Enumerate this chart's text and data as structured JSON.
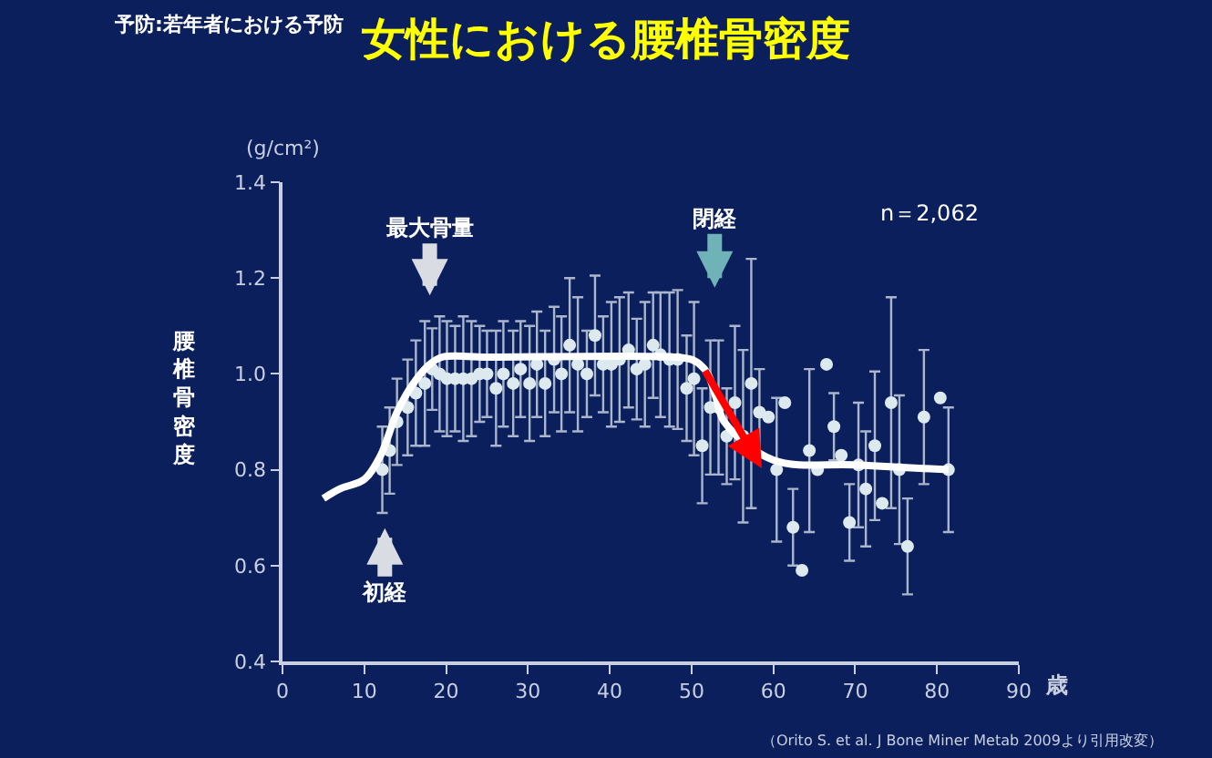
{
  "chart_data": {
    "type": "scatter",
    "title": "女性における腰椎骨密度",
    "subtitle": "予防:若年者における予防",
    "xlabel": "歳",
    "ylabel": "腰椎骨密度",
    "annotations": [
      "(g/cm²)",
      "n＝2,062",
      "（Orito S. et al. J Bone Miner Metab 2009より引用改変）",
      "最大骨量",
      "初経",
      "閉経"
    ],
    "xlim": [
      0,
      90
    ],
    "xticks": [
      0,
      10,
      20,
      30,
      40,
      50,
      60,
      70,
      80,
      90
    ],
    "ylim": [
      0.4,
      1.4
    ],
    "yticks": [
      0.4,
      0.6,
      0.8,
      {
        "value": 1.0,
        "label": "1.0"
      },
      1.2,
      1.4
    ],
    "grid": false,
    "marker": "circle",
    "series": [
      {
        "color": "#dce9ee",
        "x": [
          12.2,
          13.1,
          14.0,
          15.3,
          16.3,
          17.4,
          18.3,
          19.2,
          20.1,
          21.1,
          22.1,
          23.1,
          24.1,
          25.0,
          26.1,
          27.0,
          28.2,
          29.1,
          30.2,
          31.1,
          32.1,
          33.2,
          34.1,
          35.1,
          36.1,
          37.2,
          38.2,
          39.2,
          40.2,
          41.2,
          42.3,
          43.3,
          44.3,
          45.3,
          46.2,
          47.3,
          48.3,
          49.4,
          50.3,
          51.3,
          52.3,
          53.3,
          54.3,
          55.3,
          56.3,
          57.3,
          58.3,
          59.4,
          60.4,
          61.4,
          62.4,
          63.5,
          64.4,
          65.4,
          66.5,
          67.4,
          68.3,
          69.3,
          70.4,
          71.3,
          72.4,
          73.3,
          74.4,
          75.4,
          76.4,
          78.4,
          80.4,
          81.4
        ],
        "values": [
          0.8,
          0.84,
          0.9,
          0.93,
          0.96,
          0.98,
          1.01,
          1.0,
          0.99,
          0.99,
          0.99,
          0.99,
          1.0,
          1.0,
          0.97,
          1.0,
          0.98,
          1.01,
          0.98,
          1.02,
          0.98,
          1.03,
          1.0,
          1.06,
          1.02,
          1.0,
          1.08,
          1.02,
          1.02,
          1.03,
          1.05,
          1.01,
          1.02,
          1.06,
          1.04,
          1.03,
          1.03,
          0.97,
          0.99,
          0.85,
          0.93,
          0.93,
          0.87,
          0.94,
          0.87,
          0.98,
          0.92,
          0.91,
          0.8,
          0.94,
          0.68,
          0.59,
          0.84,
          0.8,
          1.02,
          0.89,
          0.83,
          0.69,
          0.81,
          0.76,
          0.85,
          0.73,
          0.94,
          0.8,
          0.64,
          0.91,
          0.95,
          0.8
        ],
        "errors": [
          0.09,
          0.09,
          0.09,
          0.1,
          0.11,
          0.13,
          0.085,
          0.12,
          0.12,
          0.11,
          0.13,
          0.12,
          0.1,
          0.09,
          0.12,
          0.11,
          0.11,
          0.1,
          0.12,
          0.11,
          0.11,
          0.11,
          0.12,
          0.14,
          0.14,
          0.09,
          0.125,
          0.1,
          0.13,
          0.13,
          0.12,
          0.105,
          0.13,
          0.11,
          0.13,
          0.14,
          0.145,
          0.11,
          0.16,
          0.12,
          0.14,
          0.14,
          0.1,
          0.16,
          0.18,
          0.26,
          0.09,
          null,
          0.15,
          null,
          0.08,
          null,
          0.17,
          null,
          null,
          0.07,
          null,
          0.08,
          0.13,
          0.12,
          0.155,
          null,
          0.22,
          0.155,
          0.1,
          0.14,
          null,
          0.13
        ]
      },
      {
        "type": "line",
        "color": "#ffffff",
        "marker": "none",
        "x": [
          5,
          7,
          10,
          12,
          14,
          16,
          18,
          19.5,
          25,
          48,
          50,
          51,
          52,
          53,
          54,
          60,
          70,
          81.4
        ],
        "values": [
          0.74,
          0.76,
          0.78,
          0.83,
          0.92,
          0.98,
          1.02,
          1.035,
          1.035,
          1.035,
          1.03,
          1.02,
          1.0,
          0.95,
          0.9,
          0.82,
          0.81,
          0.8
        ]
      }
    ]
  }
}
